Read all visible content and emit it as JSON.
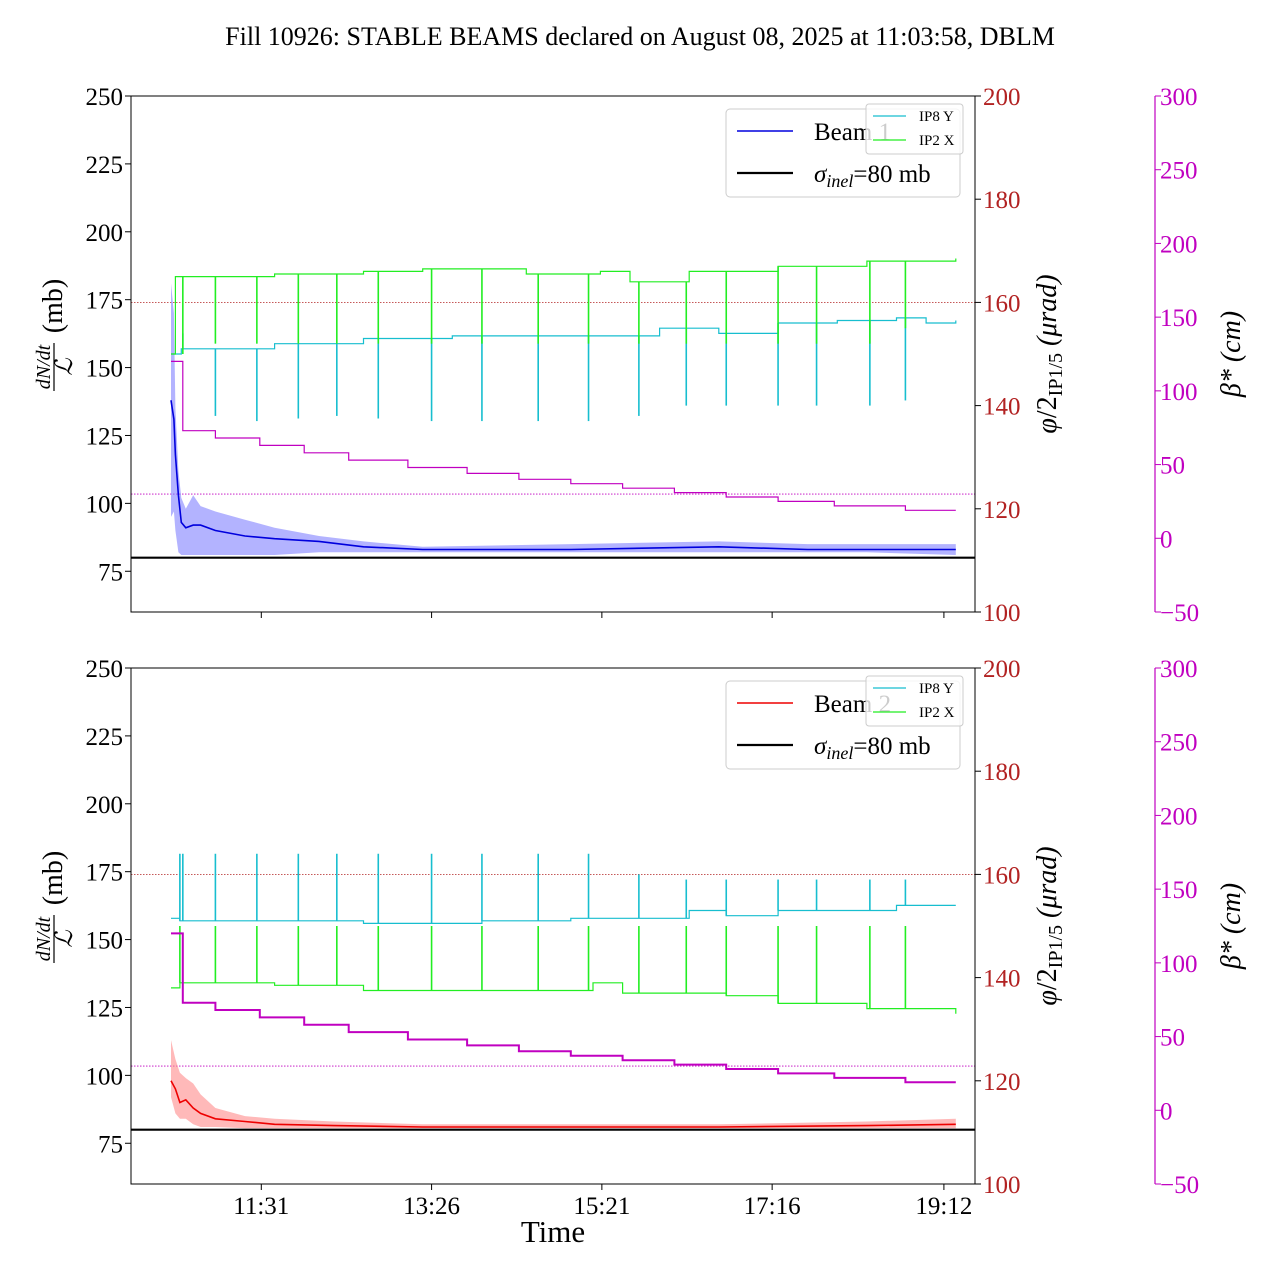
{
  "title": "Fill 10926: STABLE BEAMS declared on August 08, 2025 at 11:03:58, DBLM",
  "colors": {
    "beam1": "#0000dd",
    "beam1_band": "#8080ff",
    "beam2": "#ee0000",
    "beam2_band": "#ff8a8a",
    "ip8y": "#17becf",
    "ip2x": "#22ee22",
    "beta": "#c000c0",
    "phi": "#b22222",
    "sigma": "#000000"
  },
  "chart_data": [
    {
      "type": "line",
      "name": "Beam 1 panel",
      "xlabel": "",
      "ylabel_left": "dN/dt / L (mb)",
      "ylabel_right1": "φ/2 IP1/5 (μrad)",
      "ylabel_right2": "β* (cm)",
      "x_ticks": [
        "11:31",
        "13:26",
        "15:21",
        "17:16",
        "19:12"
      ],
      "x_ticks_shown": false,
      "x_range_minutes": [
        603,
        1173
      ],
      "y_left": {
        "range": [
          60,
          250
        ],
        "ticks": [
          75,
          100,
          125,
          150,
          175,
          200,
          225,
          250
        ]
      },
      "y_phi": {
        "range": [
          100,
          200
        ],
        "ticks": [
          100,
          120,
          140,
          160,
          180,
          200
        ]
      },
      "y_beta": {
        "range": [
          -50,
          300
        ],
        "ticks": [
          -50,
          0,
          50,
          100,
          150,
          200,
          250,
          300
        ]
      },
      "legend": {
        "location": "upper right",
        "entries": [
          "Beam 1",
          "σinel=80 mb"
        ]
      },
      "legend2": {
        "location": "upper right",
        "entries": [
          "IP8 Y",
          "IP2 X"
        ]
      },
      "reference_lines": [
        {
          "axis": "left",
          "value": 80,
          "label": "σinel=80 mb"
        },
        {
          "axis": "phi",
          "value": 160
        },
        {
          "axis": "beta",
          "value": 30
        }
      ],
      "series": [
        {
          "name": "Beam 1",
          "axis": "left",
          "x": [
            630,
            632,
            633,
            635,
            637,
            640,
            645,
            650,
            660,
            680,
            700,
            730,
            760,
            800,
            900,
            1000,
            1060,
            1100,
            1160
          ],
          "y": [
            138,
            131,
            118,
            103,
            93,
            91,
            92,
            92,
            90,
            88,
            87,
            86,
            84,
            83,
            83,
            84,
            83,
            83,
            83
          ],
          "band_low": [
            95,
            97,
            90,
            82,
            81,
            81,
            81,
            81,
            81,
            81,
            81,
            82,
            82,
            82,
            82,
            82,
            82,
            82,
            81
          ],
          "band_high": [
            181,
            170,
            135,
            112,
            102,
            98,
            103,
            99,
            97,
            94,
            91,
            88,
            86,
            84,
            85,
            86,
            85,
            85,
            85
          ]
        },
        {
          "name": "IP8 Y",
          "axis": "phi",
          "x": [
            630,
            636,
            637,
            700,
            760,
            820,
            900,
            960,
            1000,
            1040,
            1080,
            1120,
            1140,
            1160
          ],
          "y": [
            150,
            150,
            151,
            152,
            153,
            153.5,
            153.5,
            155,
            154,
            156,
            156.5,
            157,
            156,
            156.5
          ],
          "spike_x": [
            638,
            660,
            688,
            716,
            742,
            770,
            806,
            840,
            878,
            912,
            946,
            978,
            1005,
            1040,
            1066,
            1102,
            1126
          ],
          "spike_to": [
            154,
            138,
            137,
            137.5,
            138,
            137.5,
            137,
            137,
            137,
            137,
            138,
            140,
            140,
            140,
            140,
            140,
            141
          ]
        },
        {
          "name": "IP2 X",
          "axis": "phi",
          "x": [
            630,
            633,
            640,
            700,
            760,
            800,
            870,
            920,
            940,
            980,
            1040,
            1100,
            1140,
            1160
          ],
          "y": [
            150,
            165,
            165,
            165.5,
            166,
            166.5,
            165.5,
            166,
            164,
            166,
            167,
            168,
            168,
            168.5
          ],
          "spike_x": [
            638,
            660,
            688,
            716,
            742,
            770,
            806,
            840,
            878,
            912,
            946,
            978,
            1005,
            1040,
            1066,
            1102,
            1126
          ],
          "spike_to": [
            150,
            152,
            152,
            152,
            152,
            152,
            152,
            152,
            152,
            152,
            152,
            152,
            152,
            152,
            152,
            152,
            155
          ]
        },
        {
          "name": "β*",
          "axis": "beta",
          "x": [
            630,
            636,
            638,
            660,
            690,
            720,
            750,
            790,
            830,
            865,
            900,
            935,
            970,
            1005,
            1040,
            1078,
            1126,
            1160
          ],
          "y": [
            120,
            120,
            73,
            68,
            63,
            58,
            53,
            48,
            44,
            40,
            37,
            34,
            31,
            28,
            25,
            22,
            19,
            19
          ]
        }
      ]
    },
    {
      "type": "line",
      "name": "Beam 2 panel",
      "xlabel": "Time",
      "ylabel_left": "dN/dt / L (mb)",
      "ylabel_right1": "φ/2 IP1/5 (μrad)",
      "ylabel_right2": "β* (cm)",
      "x_ticks": [
        "11:31",
        "13:26",
        "15:21",
        "17:16",
        "19:12"
      ],
      "x_ticks_shown": true,
      "x_range_minutes": [
        603,
        1173
      ],
      "y_left": {
        "range": [
          60,
          250
        ],
        "ticks": [
          75,
          100,
          125,
          150,
          175,
          200,
          225,
          250
        ]
      },
      "y_phi": {
        "range": [
          100,
          200
        ],
        "ticks": [
          100,
          120,
          140,
          160,
          180,
          200
        ]
      },
      "y_beta": {
        "range": [
          -50,
          300
        ],
        "ticks": [
          -50,
          0,
          50,
          100,
          150,
          200,
          250,
          300
        ]
      },
      "legend": {
        "location": "upper right",
        "entries": [
          "Beam 2",
          "σinel=80 mb"
        ]
      },
      "legend2": {
        "location": "upper right",
        "entries": [
          "IP8 Y",
          "IP2 X"
        ]
      },
      "reference_lines": [
        {
          "axis": "left",
          "value": 80,
          "label": "σinel=80 mb"
        },
        {
          "axis": "phi",
          "value": 160
        },
        {
          "axis": "beta",
          "value": 30
        }
      ],
      "series": [
        {
          "name": "Beam 2",
          "axis": "left",
          "x": [
            630,
            633,
            636,
            640,
            645,
            650,
            660,
            680,
            700,
            740,
            800,
            900,
            1000,
            1100,
            1160
          ],
          "y": [
            98,
            95,
            90,
            91,
            88,
            86,
            84,
            83,
            82,
            81.5,
            81,
            81,
            81,
            81.5,
            82
          ],
          "band_low": [
            92,
            86,
            84,
            84,
            82,
            81,
            81,
            80.5,
            80.5,
            80.5,
            80.5,
            80.5,
            80.5,
            80.5,
            80.5
          ],
          "band_high": [
            113,
            106,
            101,
            99,
            97,
            93,
            88,
            85,
            84,
            83,
            82,
            82,
            82,
            83,
            84
          ]
        },
        {
          "name": "IP8 Y",
          "axis": "phi",
          "x": [
            630,
            635,
            636,
            700,
            760,
            840,
            900,
            940,
            980,
            1005,
            1040,
            1080,
            1120,
            1160
          ],
          "y": [
            151.5,
            151.5,
            151,
            151,
            150.5,
            151,
            151.5,
            151.5,
            153,
            152,
            153,
            153,
            154,
            154
          ],
          "spike_x": [
            636,
            638,
            660,
            688,
            716,
            742,
            770,
            806,
            840,
            878,
            912,
            946,
            978,
            1005,
            1040,
            1066,
            1102,
            1126
          ],
          "spike_to": [
            164,
            164,
            164,
            164,
            164,
            164,
            164,
            164,
            164,
            164,
            164,
            160,
            159,
            159,
            159,
            159,
            159,
            159
          ]
        },
        {
          "name": "IP2 X",
          "axis": "phi",
          "x": [
            630,
            633,
            636,
            700,
            760,
            840,
            900,
            915,
            935,
            970,
            1005,
            1040,
            1100,
            1160
          ],
          "y": [
            138,
            138,
            139,
            138.5,
            137.5,
            137.5,
            137.5,
            139,
            137,
            137,
            136.5,
            135,
            134,
            133
          ],
          "spike_x": [
            636,
            660,
            688,
            716,
            742,
            770,
            806,
            840,
            878,
            912,
            946,
            978,
            1005,
            1040,
            1066,
            1102,
            1126
          ],
          "spike_to": [
            150,
            150,
            150,
            150,
            150,
            150,
            150,
            150,
            150,
            150,
            150,
            150,
            150,
            150,
            150,
            150,
            150
          ]
        },
        {
          "name": "β*",
          "axis": "beta",
          "x": [
            630,
            636,
            638,
            660,
            690,
            720,
            750,
            790,
            830,
            865,
            900,
            935,
            970,
            1005,
            1040,
            1078,
            1126,
            1160
          ],
          "y": [
            120,
            120,
            73,
            68,
            63,
            58,
            53,
            48,
            44,
            40,
            37,
            34,
            31,
            28,
            25,
            22,
            19,
            19
          ]
        }
      ]
    }
  ]
}
